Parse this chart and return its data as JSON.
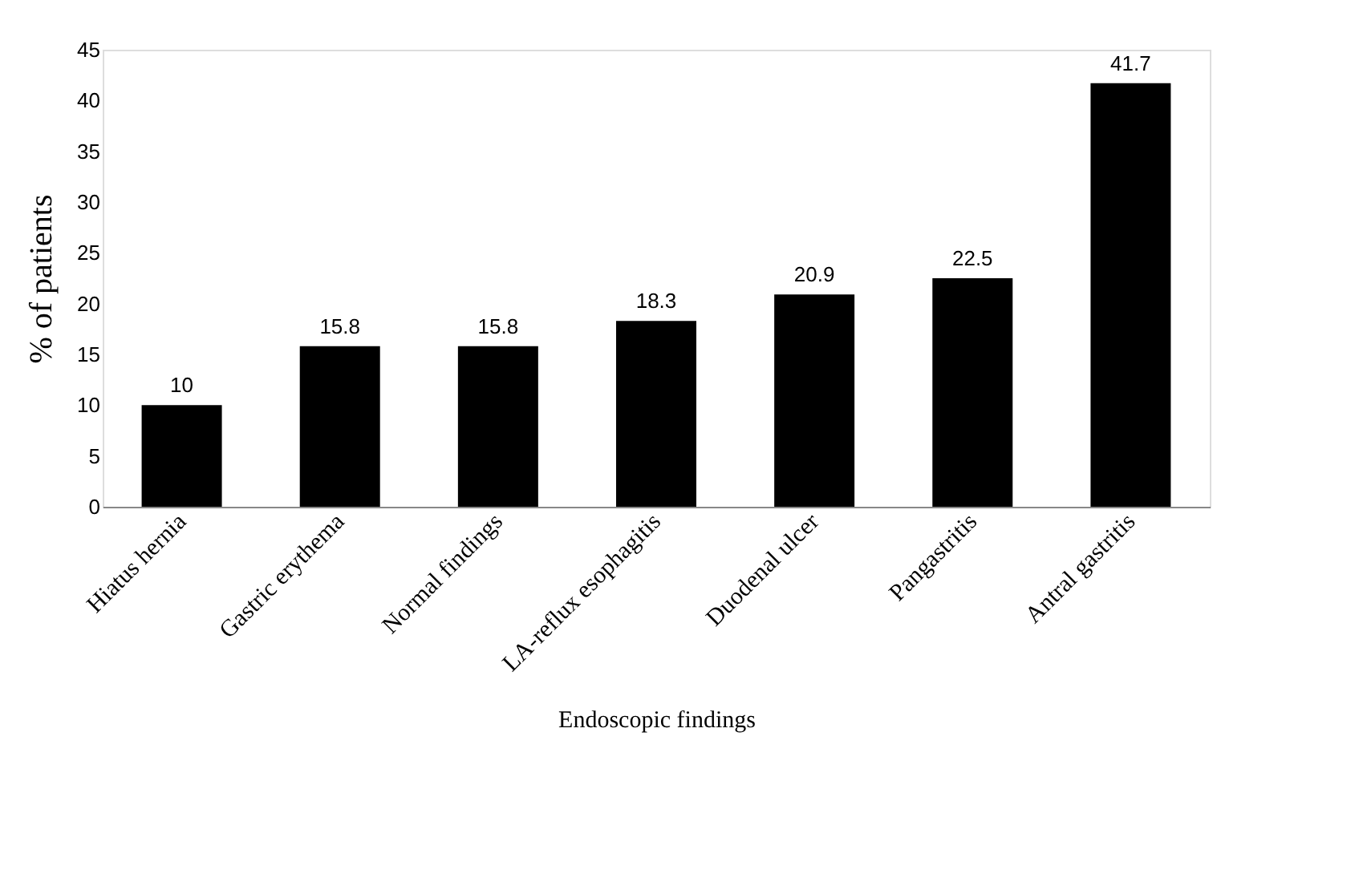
{
  "chart_data": {
    "type": "bar",
    "xlabel": "Endoscopic findings",
    "ylabel": "% of patients",
    "categories": [
      "Hiatus hernia",
      "Gastric erythema",
      "Normal findings",
      "LA-reflux esophagitis",
      "Duodenal ulcer",
      "Pangastritis",
      "Antral gastritis"
    ],
    "values": [
      10,
      15.8,
      15.8,
      18.3,
      20.9,
      22.5,
      41.7
    ],
    "color": "#000000",
    "ylim": [
      0,
      45
    ],
    "yticks": [
      0,
      5,
      10,
      15,
      20,
      25,
      30,
      35,
      40,
      45
    ],
    "grid": false,
    "data_labels": true
  }
}
